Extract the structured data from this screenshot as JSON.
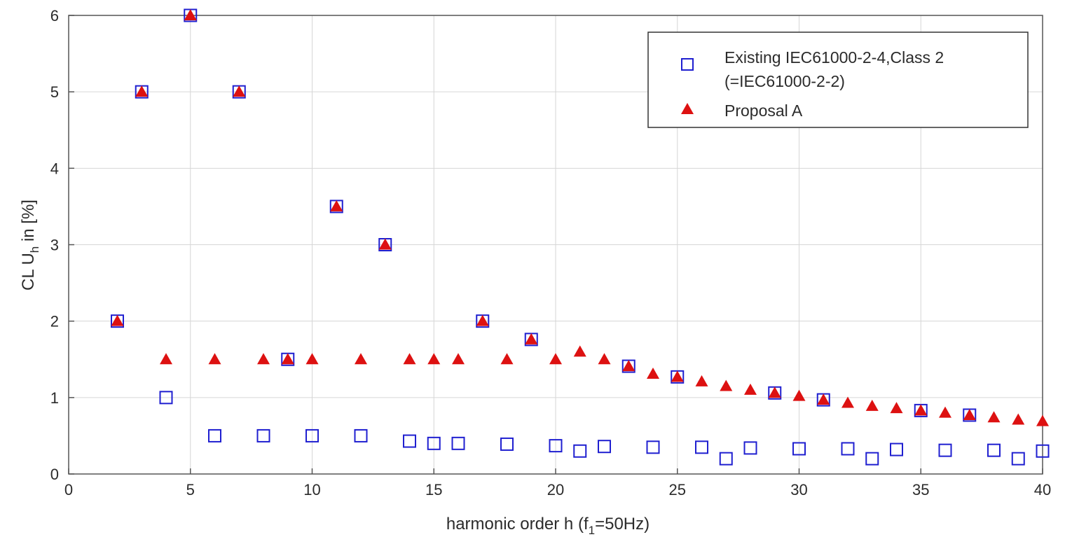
{
  "chart_data": {
    "type": "scatter",
    "xlabel_parts": [
      "harmonic order h (f",
      "1",
      "=50Hz)"
    ],
    "ylabel_parts": [
      "CL U",
      "h",
      " in [%]"
    ],
    "xlim": [
      0,
      40
    ],
    "ylim": [
      0,
      6
    ],
    "x_ticks": [
      0,
      5,
      10,
      15,
      20,
      25,
      30,
      35,
      40
    ],
    "y_ticks": [
      0,
      1,
      2,
      3,
      4,
      5,
      6
    ],
    "grid": true,
    "legend_position": "top-right",
    "series": [
      {
        "name": "Existing IEC61000-2-4,Class 2",
        "name_line2": "(=IEC61000-2-2)",
        "marker": "square-open",
        "color": "#1f1fd0",
        "x": [
          2,
          3,
          4,
          5,
          6,
          7,
          8,
          9,
          10,
          11,
          12,
          13,
          14,
          15,
          16,
          17,
          18,
          19,
          20,
          21,
          22,
          23,
          24,
          25,
          26,
          27,
          28,
          29,
          30,
          31,
          32,
          33,
          34,
          35,
          36,
          37,
          38,
          39,
          40
        ],
        "y": [
          2,
          5,
          1,
          6,
          0.5,
          5,
          0.5,
          1.5,
          0.5,
          3.5,
          0.5,
          3,
          0.43,
          0.4,
          0.4,
          2,
          0.39,
          1.76,
          0.37,
          0.3,
          0.36,
          1.41,
          0.35,
          1.27,
          0.35,
          0.2,
          0.34,
          1.06,
          0.33,
          0.97,
          0.33,
          0.2,
          0.32,
          0.83,
          0.31,
          0.77,
          0.31,
          0.2,
          0.3
        ]
      },
      {
        "name": "Proposal A",
        "marker": "triangle-filled",
        "color": "#dd1111",
        "x": [
          2,
          3,
          4,
          5,
          6,
          7,
          8,
          9,
          10,
          11,
          12,
          13,
          14,
          15,
          16,
          17,
          18,
          19,
          20,
          21,
          22,
          23,
          24,
          25,
          26,
          27,
          28,
          29,
          30,
          31,
          32,
          33,
          34,
          35,
          36,
          37,
          38,
          39,
          40
        ],
        "y": [
          2,
          5,
          1.5,
          6,
          1.5,
          5,
          1.5,
          1.5,
          1.5,
          3.5,
          1.5,
          3,
          1.5,
          1.5,
          1.5,
          2,
          1.5,
          1.76,
          1.5,
          1.6,
          1.5,
          1.41,
          1.31,
          1.27,
          1.21,
          1.15,
          1.1,
          1.06,
          1.02,
          0.97,
          0.93,
          0.89,
          0.86,
          0.83,
          0.8,
          0.77,
          0.74,
          0.71,
          0.69
        ]
      }
    ]
  }
}
